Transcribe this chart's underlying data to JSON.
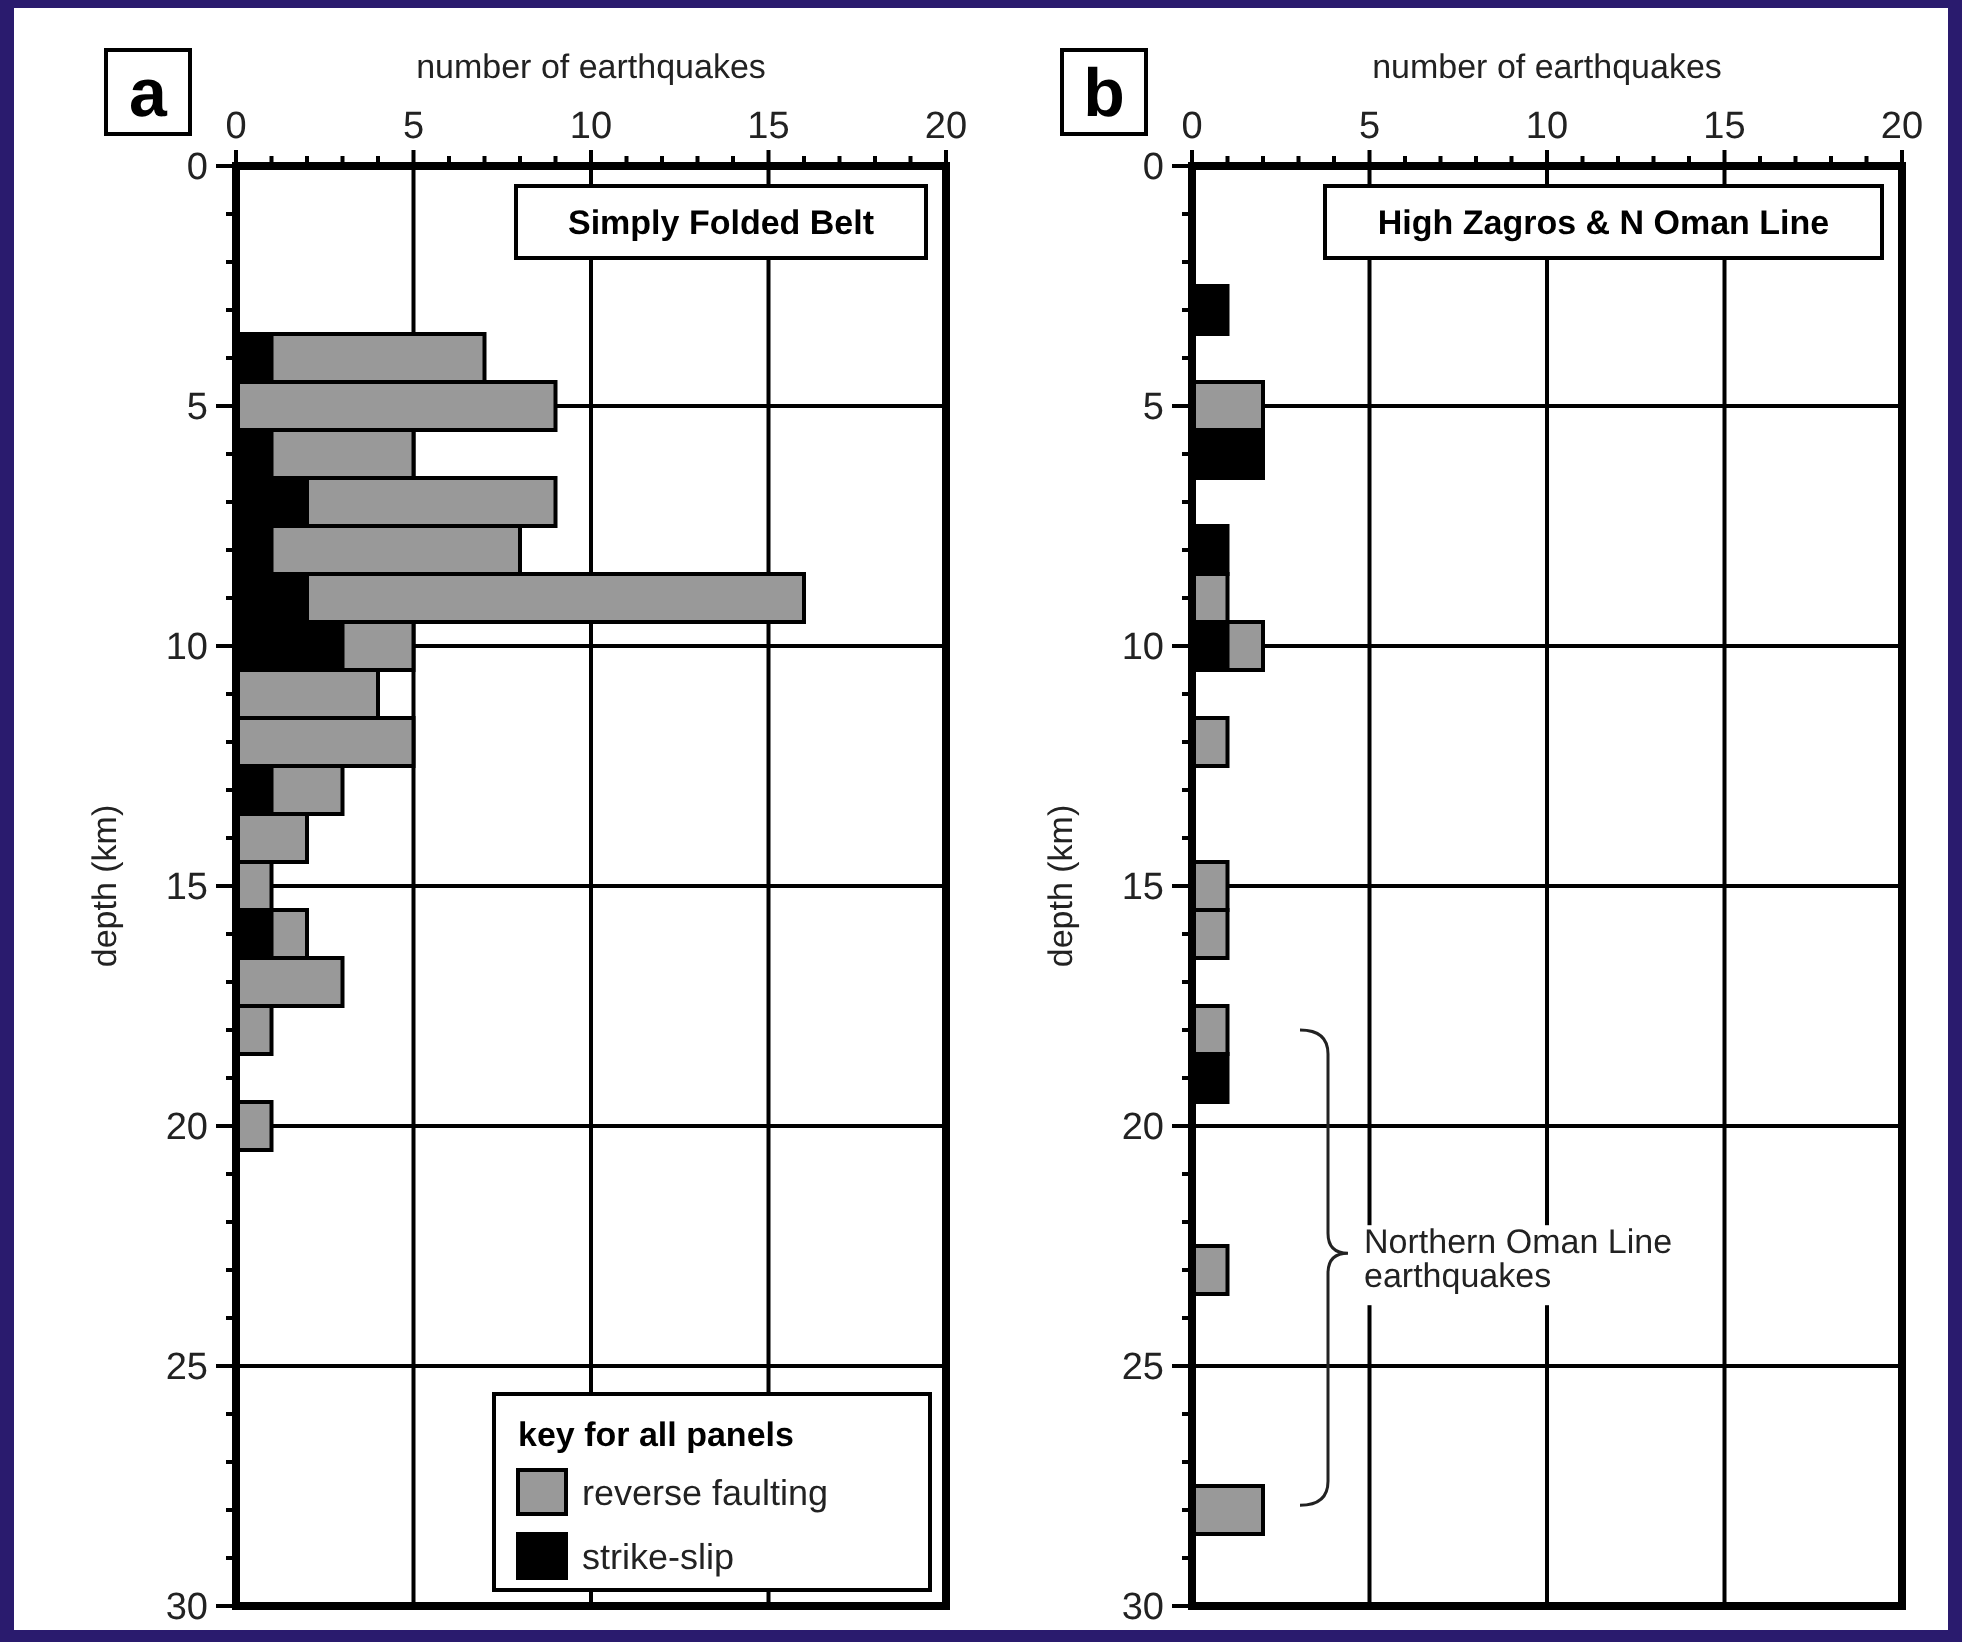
{
  "chart_data": [
    {
      "type": "bar",
      "orientation": "horizontal",
      "stacked": true,
      "title": "Simply Folded Belt",
      "xlabel": "number of earthquakes",
      "ylabel": "depth (km)",
      "legend_title": "key for all panels",
      "legend": "bottom right",
      "grid": true,
      "annotations": [
        "a"
      ],
      "x": [
        4,
        5,
        6,
        7,
        8,
        9,
        10,
        11,
        12,
        13,
        14,
        15,
        16,
        17,
        18,
        20
      ],
      "series": [
        {
          "name": "strike-slip",
          "color": "#000000",
          "values": [
            1,
            null,
            1,
            2,
            1,
            2,
            3,
            null,
            null,
            1,
            null,
            null,
            1,
            null,
            null,
            null
          ]
        },
        {
          "name": "reverse faulting",
          "color": "#999999",
          "values": [
            6,
            9,
            4,
            7,
            7,
            14,
            2,
            4,
            5,
            2,
            2,
            1,
            1,
            3,
            1,
            1
          ]
        }
      ],
      "xlim": [
        0,
        20
      ],
      "ylim": [
        30,
        0
      ],
      "xticks": [
        0,
        {
          "value": 1,
          "label": null
        },
        {
          "value": 2,
          "label": null
        },
        {
          "value": 3,
          "label": null
        },
        {
          "value": 4,
          "label": null
        },
        5,
        {
          "value": 6,
          "label": null
        },
        {
          "value": 7,
          "label": null
        },
        {
          "value": 8,
          "label": null
        },
        {
          "value": 9,
          "label": null
        },
        10,
        {
          "value": 11,
          "label": null
        },
        {
          "value": 12,
          "label": null
        },
        {
          "value": 13,
          "label": null
        },
        {
          "value": 14,
          "label": null
        },
        15,
        {
          "value": 16,
          "label": null
        },
        {
          "value": 17,
          "label": null
        },
        {
          "value": 18,
          "label": null
        },
        {
          "value": 19,
          "label": null
        },
        20
      ],
      "yticks": [
        0,
        {
          "value": 1,
          "label": null
        },
        {
          "value": 2,
          "label": null
        },
        {
          "value": 3,
          "label": null
        },
        {
          "value": 4,
          "label": null
        },
        5,
        {
          "value": 6,
          "label": null
        },
        {
          "value": 7,
          "label": null
        },
        {
          "value": 8,
          "label": null
        },
        {
          "value": 9,
          "label": null
        },
        10,
        {
          "value": 11,
          "label": null
        },
        {
          "value": 12,
          "label": null
        },
        {
          "value": 13,
          "label": null
        },
        {
          "value": 14,
          "label": null
        },
        15,
        {
          "value": 16,
          "label": null
        },
        {
          "value": 17,
          "label": null
        },
        {
          "value": 18,
          "label": null
        },
        {
          "value": 19,
          "label": null
        },
        20,
        {
          "value": 21,
          "label": null
        },
        {
          "value": 22,
          "label": null
        },
        {
          "value": 23,
          "label": null
        },
        {
          "value": 24,
          "label": null
        },
        25,
        {
          "value": 26,
          "label": null
        },
        {
          "value": 27,
          "label": null
        },
        {
          "value": 28,
          "label": null
        },
        {
          "value": 29,
          "label": null
        },
        30
      ]
    },
    {
      "type": "bar",
      "orientation": "horizontal",
      "stacked": true,
      "title": "High Zagros & N Oman Line",
      "xlabel": "number of earthquakes",
      "ylabel": "depth (km)",
      "grid": true,
      "annotations": [
        "b",
        "Northern Oman Line earthquakes"
      ],
      "x": [
        3,
        5,
        6,
        8,
        9,
        10,
        12,
        15,
        16,
        18,
        19,
        23,
        28
      ],
      "series": [
        {
          "color": "#000000",
          "values": [
            1,
            null,
            2,
            1,
            null,
            1,
            null,
            null,
            null,
            null,
            1,
            null,
            null
          ]
        },
        {
          "color": "#999999",
          "values": [
            null,
            2,
            null,
            null,
            1,
            1,
            1,
            1,
            1,
            1,
            null,
            1,
            2
          ]
        }
      ],
      "xlim": [
        0,
        20
      ],
      "ylim": [
        30,
        0
      ],
      "xticks": [
        0,
        {
          "value": 1,
          "label": null
        },
        {
          "value": 2,
          "label": null
        },
        {
          "value": 3,
          "label": null
        },
        {
          "value": 4,
          "label": null
        },
        5,
        {
          "value": 6,
          "label": null
        },
        {
          "value": 7,
          "label": null
        },
        {
          "value": 8,
          "label": null
        },
        {
          "value": 9,
          "label": null
        },
        10,
        {
          "value": 11,
          "label": null
        },
        {
          "value": 12,
          "label": null
        },
        {
          "value": 13,
          "label": null
        },
        {
          "value": 14,
          "label": null
        },
        15,
        {
          "value": 16,
          "label": null
        },
        {
          "value": 17,
          "label": null
        },
        {
          "value": 18,
          "label": null
        },
        {
          "value": 19,
          "label": null
        },
        20
      ],
      "yticks": [
        0,
        {
          "value": 1,
          "label": null
        },
        {
          "value": 2,
          "label": null
        },
        {
          "value": 3,
          "label": null
        },
        {
          "value": 4,
          "label": null
        },
        5,
        {
          "value": 6,
          "label": null
        },
        {
          "value": 7,
          "label": null
        },
        {
          "value": 8,
          "label": null
        },
        {
          "value": 9,
          "label": null
        },
        10,
        {
          "value": 11,
          "label": null
        },
        {
          "value": 12,
          "label": null
        },
        {
          "value": 13,
          "label": null
        },
        {
          "value": 14,
          "label": null
        },
        15,
        {
          "value": 16,
          "label": null
        },
        {
          "value": 17,
          "label": null
        },
        {
          "value": 18,
          "label": null
        },
        {
          "value": 19,
          "label": null
        },
        20,
        {
          "value": 21,
          "label": null
        },
        {
          "value": 22,
          "label": null
        },
        {
          "value": 23,
          "label": null
        },
        {
          "value": 24,
          "label": null
        },
        25,
        {
          "value": 26,
          "label": null
        },
        {
          "value": 27,
          "label": null
        },
        {
          "value": 28,
          "label": null
        },
        {
          "value": 29,
          "label": null
        },
        30
      ]
    }
  ]
}
